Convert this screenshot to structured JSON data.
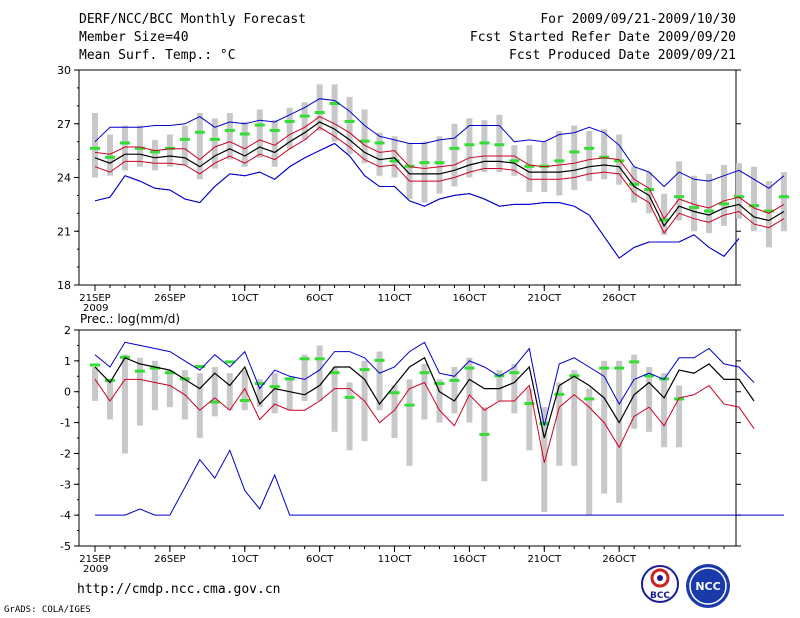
{
  "header": {
    "title": "DERF/NCC/BCC Monthly Forecast",
    "member": "Member Size=40",
    "variable": "Mean Surf. Temp.: °C",
    "period": "For 2009/09/21-2009/10/30",
    "started": "Fcst Started Refer Date 2009/09/20",
    "produced": "Fcst Produced Date 2009/09/21"
  },
  "footer": {
    "url": "http://cmdp.ncc.cma.gov.cn",
    "grads": "GrADS: COLA/IGES",
    "logo1": "BCC",
    "logo2": "NCC"
  },
  "colors": {
    "max": "#0000cc",
    "min": "#0000cc",
    "bounds": "#cc0022",
    "mean": "#000000",
    "member": "#33dd33",
    "bar": "#c8c8c8"
  },
  "chart_data": [
    {
      "type": "line",
      "title": "Mean Surf. Temp.: °C",
      "ylim": [
        18,
        30
      ],
      "yticks": [
        18,
        21,
        24,
        27,
        30
      ],
      "xlabel_ticks": [
        {
          "label": "21SEP",
          "sub": "2009",
          "day": 0
        },
        {
          "label": "26SEP",
          "day": 5
        },
        {
          "label": "1OCT",
          "day": 10
        },
        {
          "label": "6OCT",
          "day": 15
        },
        {
          "label": "11OCT",
          "day": 20
        },
        {
          "label": "16OCT",
          "day": 25
        },
        {
          "label": "21OCT",
          "day": 30
        },
        {
          "label": "26OCT",
          "day": 35
        }
      ],
      "days": 40,
      "series": [
        {
          "name": "max",
          "values": [
            22.7,
            22.9,
            24.1,
            23.8,
            23.4,
            23.3,
            22.8,
            22.6,
            23.5,
            24.2,
            24.1,
            24.3,
            23.9,
            24.6,
            25.1,
            25.5,
            25.9,
            25.2,
            24.1,
            23.5,
            23.5,
            22.7,
            22.4,
            22.8,
            23.0,
            23.1,
            22.8,
            22.4,
            22.5,
            22.5,
            22.6,
            22.6,
            22.4,
            21.9,
            20.7,
            19.5,
            20.1,
            20.4,
            20.4,
            20.4,
            20.8,
            20.1,
            19.6,
            20.6
          ]
        },
        {
          "name": "mean",
          "values": [
            25.1,
            24.8,
            25.3,
            25.3,
            25.1,
            25.2,
            25.1,
            24.6,
            25.2,
            25.6,
            25.2,
            25.7,
            25.4,
            26.0,
            26.5,
            27.1,
            26.7,
            26.1,
            25.4,
            25.0,
            25.1,
            24.2,
            24.2,
            24.2,
            24.4,
            24.7,
            24.9,
            24.9,
            24.8,
            24.3,
            24.3,
            24.3,
            24.4,
            24.6,
            24.7,
            24.6,
            23.5,
            23.0,
            21.3,
            22.4,
            22.1,
            21.9,
            22.3,
            22.5,
            21.8,
            21.6,
            22.1
          ]
        },
        {
          "name": "upper",
          "values": [
            25.4,
            25.3,
            25.7,
            25.7,
            25.5,
            25.6,
            25.6,
            25.0,
            25.7,
            26.0,
            25.6,
            26.1,
            25.8,
            26.4,
            26.8,
            27.4,
            27.0,
            26.5,
            25.8,
            25.4,
            25.5,
            24.6,
            24.5,
            24.6,
            24.7,
            25.1,
            25.2,
            25.2,
            25.2,
            24.7,
            24.6,
            24.7,
            24.8,
            25.0,
            25.1,
            25.0,
            23.9,
            23.4,
            21.7,
            22.8,
            22.5,
            22.3,
            22.7,
            22.9,
            22.3,
            22.0,
            22.5
          ]
        },
        {
          "name": "lower",
          "values": [
            24.6,
            24.3,
            24.9,
            24.9,
            24.8,
            24.8,
            24.7,
            24.2,
            24.8,
            25.2,
            24.8,
            25.3,
            25.0,
            25.6,
            26.1,
            26.8,
            26.3,
            25.7,
            25.0,
            24.6,
            24.7,
            23.8,
            23.8,
            23.8,
            24.0,
            24.3,
            24.5,
            24.5,
            24.4,
            23.9,
            23.9,
            23.9,
            24.0,
            24.2,
            24.3,
            24.2,
            23.1,
            22.6,
            20.9,
            22.0,
            21.7,
            21.5,
            21.9,
            22.1,
            21.4,
            21.2,
            21.7
          ]
        },
        {
          "name": "ensemble_max",
          "values": [
            26.0,
            26.8,
            26.8,
            26.8,
            26.9,
            26.9,
            27.0,
            27.4,
            26.8,
            27.1,
            27.0,
            27.2,
            27.1,
            27.5,
            27.9,
            28.4,
            28.3,
            27.7,
            26.9,
            26.3,
            26.1,
            25.9,
            25.9,
            26.1,
            26.2,
            26.9,
            26.9,
            26.9,
            26.0,
            26.1,
            26.0,
            26.4,
            26.5,
            26.8,
            26.5,
            25.8,
            24.6,
            24.3,
            23.5,
            24.3,
            23.9,
            23.8,
            24.1,
            24.4,
            23.9,
            23.4,
            24.1
          ]
        },
        {
          "name": "ensemble_min",
          "values": [
            22.7,
            22.9,
            24.1,
            23.8,
            23.4,
            23.3,
            22.8,
            22.6,
            23.5,
            24.2,
            24.1,
            24.3,
            23.9,
            24.6,
            25.1,
            25.5,
            25.9,
            25.2,
            24.1,
            23.5,
            23.5,
            22.7,
            22.4,
            22.8,
            23.0,
            23.1,
            22.8,
            22.4,
            22.5,
            22.5,
            22.6,
            22.6,
            22.4,
            21.9,
            20.7,
            19.5,
            20.1,
            20.4,
            20.4,
            20.4,
            20.8,
            20.1,
            19.6,
            20.6
          ]
        },
        {
          "name": "median",
          "values": [
            25.6,
            25.1,
            25.9,
            25.6,
            25.4,
            25.6,
            26.1,
            26.5,
            26.1,
            26.6,
            26.4,
            26.9,
            26.6,
            27.1,
            27.4,
            27.6,
            28.1,
            27.1,
            26.0,
            25.9,
            24.9,
            24.6,
            24.8,
            24.8,
            25.6,
            25.8,
            25.9,
            25.8,
            24.9,
            24.6,
            24.6,
            24.9,
            25.4,
            25.6,
            25.1,
            24.9,
            23.6,
            23.3,
            21.6,
            22.9,
            22.3,
            22.1,
            22.5,
            22.9,
            22.4,
            22.1,
            22.9
          ]
        },
        {
          "name": "range_high",
          "values": [
            27.6,
            26.4,
            26.9,
            26.9,
            26.1,
            26.4,
            26.9,
            27.6,
            27.3,
            27.6,
            27.1,
            27.8,
            27.2,
            27.9,
            28.2,
            29.2,
            29.2,
            28.5,
            27.8,
            26.5,
            26.3,
            25.9,
            26.0,
            26.3,
            27.0,
            27.3,
            27.2,
            27.5,
            25.8,
            25.8,
            26.0,
            26.6,
            26.9,
            26.6,
            26.7,
            26.4,
            24.6,
            24.3,
            23.1,
            24.9,
            24.1,
            24.2,
            24.7,
            24.8,
            24.6,
            23.8,
            24.3
          ]
        },
        {
          "name": "range_low",
          "values": [
            24.0,
            24.1,
            24.4,
            24.6,
            24.4,
            24.6,
            24.7,
            23.9,
            24.5,
            25.0,
            24.6,
            25.1,
            24.6,
            25.6,
            26.1,
            26.6,
            26.0,
            25.3,
            24.8,
            24.1,
            24.0,
            22.8,
            22.6,
            23.1,
            23.5,
            24.0,
            24.3,
            24.3,
            24.1,
            23.2,
            23.2,
            23.0,
            23.3,
            23.8,
            23.9,
            23.6,
            22.6,
            22.0,
            20.8,
            21.6,
            21.0,
            20.9,
            21.3,
            21.7,
            21.0,
            20.1,
            21.0
          ]
        }
      ]
    },
    {
      "type": "line",
      "title": "Prec.: log(mm/d)",
      "ylim": [
        -5,
        2
      ],
      "yticks": [
        -5,
        -4,
        -3,
        -2,
        -1,
        0,
        1,
        2
      ],
      "xlabel_ticks": [
        {
          "label": "21SEP",
          "sub": "2009",
          "day": 0
        },
        {
          "label": "26SEP",
          "day": 5
        },
        {
          "label": "1OCT",
          "day": 10
        },
        {
          "label": "6OCT",
          "day": 15
        },
        {
          "label": "11OCT",
          "day": 20
        },
        {
          "label": "16OCT",
          "day": 25
        },
        {
          "label": "21OCT",
          "day": 30
        },
        {
          "label": "26OCT",
          "day": 35
        }
      ],
      "days": 40,
      "series": [
        {
          "name": "max",
          "values": [
            1.2,
            0.8,
            1.6,
            1.5,
            1.4,
            1.3,
            1.0,
            0.7,
            1.2,
            0.8,
            1.3,
            0.1,
            0.7,
            0.5,
            0.4,
            0.7,
            1.3,
            1.3,
            1.1,
            0.6,
            0.8,
            1.3,
            1.6,
            0.6,
            0.5,
            1.0,
            0.8,
            0.5,
            0.8,
            1.4,
            -1.1,
            0.9,
            1.1,
            0.8,
            0.5,
            -0.4,
            0.4,
            0.6,
            0.4,
            1.1,
            1.1,
            1.4,
            0.9,
            0.8,
            0.3
          ]
        },
        {
          "name": "mean",
          "values": [
            0.8,
            0.3,
            1.1,
            0.9,
            0.8,
            0.7,
            0.4,
            0.1,
            0.6,
            0.2,
            0.8,
            -0.4,
            0.1,
            0.0,
            -0.1,
            0.2,
            0.8,
            0.8,
            0.4,
            -0.4,
            0.2,
            0.8,
            1.1,
            0.0,
            -0.3,
            0.4,
            0.1,
            0.1,
            0.3,
            0.8,
            -1.5,
            0.2,
            0.5,
            0.2,
            -0.2,
            -1.0,
            -0.1,
            0.3,
            -0.2,
            0.7,
            0.6,
            0.9,
            0.4,
            0.4,
            -0.3
          ]
        },
        {
          "name": "min",
          "values": [
            0.4,
            -0.3,
            0.4,
            0.4,
            0.3,
            0.2,
            -0.1,
            -0.6,
            -0.2,
            -0.6,
            0.1,
            -0.9,
            -0.4,
            -0.6,
            -0.6,
            -0.3,
            0.1,
            0.1,
            -0.3,
            -1.0,
            -0.6,
            0.1,
            0.3,
            -0.6,
            -1.1,
            -0.1,
            -0.6,
            -0.3,
            -0.3,
            0.2,
            -2.3,
            -0.5,
            -0.1,
            -0.5,
            -1.0,
            -1.8,
            -0.8,
            -0.5,
            -1.1,
            -0.2,
            -0.1,
            0.2,
            -0.4,
            -0.5,
            -1.2
          ]
        },
        {
          "name": "ensemble_min",
          "values": [
            -4,
            -4,
            -4,
            -3.8,
            -4,
            -4,
            -3.1,
            -2.2,
            -2.8,
            -1.9,
            -3.2,
            -3.8,
            -2.7,
            -4,
            -4,
            -4,
            -4,
            -4,
            -4,
            -4,
            -4,
            -4,
            -4,
            -4,
            -4,
            -4,
            -4,
            -4,
            -4,
            -4,
            -4,
            -4,
            -4,
            -4,
            -4,
            -4,
            -4,
            -4,
            -4,
            -4,
            -4,
            -4,
            -4,
            -4,
            -4,
            -4,
            -4
          ]
        },
        {
          "name": "median",
          "values": [
            0.85,
            0.35,
            1.1,
            0.65,
            0.75,
            0.6,
            0.4,
            0.8,
            -0.35,
            0.95,
            -0.3,
            0.25,
            0.15,
            0.4,
            1.05,
            1.05,
            0.6,
            -0.2,
            0.7,
            1.0,
            -0.05,
            -0.45,
            0.6,
            0.25,
            0.35,
            0.75,
            -1.4,
            0.5,
            0.6,
            -0.4,
            -1.05,
            -0.1,
            0.5,
            -0.25,
            0.75,
            0.75,
            0.95,
            0.5,
            0.4,
            -0.25
          ]
        },
        {
          "name": "range_low",
          "values": [
            -0.3,
            -0.9,
            -2.0,
            -1.1,
            -0.6,
            -0.5,
            -0.9,
            -1.5,
            -0.8,
            -0.6,
            -0.6,
            -0.5,
            -0.7,
            -0.6,
            -0.3,
            -0.3,
            -1.3,
            -1.9,
            -1.6,
            -0.6,
            -1.5,
            -2.4,
            -0.9,
            -1.0,
            -0.7,
            -1.0,
            -2.9,
            -0.3,
            -0.7,
            -1.9,
            -3.9,
            -2.4,
            -2.4,
            -4.0,
            -3.3,
            -3.6,
            -1.2,
            -1.3,
            -1.8,
            -1.8
          ]
        },
        {
          "name": "range_high",
          "values": [
            0.8,
            0.4,
            1.2,
            1.1,
            1.0,
            0.7,
            0.7,
            0.6,
            0.8,
            0.6,
            0.7,
            0.4,
            0.6,
            0.4,
            1.2,
            1.5,
            0.8,
            0.3,
            1.0,
            1.3,
            0.2,
            0.4,
            0.9,
            0.4,
            0.8,
            1.1,
            -0.5,
            0.7,
            0.9,
            0.1,
            -0.5,
            0.3,
            0.7,
            0.1,
            1.0,
            1.0,
            1.2,
            0.8,
            0.6,
            0.2
          ]
        }
      ]
    }
  ]
}
